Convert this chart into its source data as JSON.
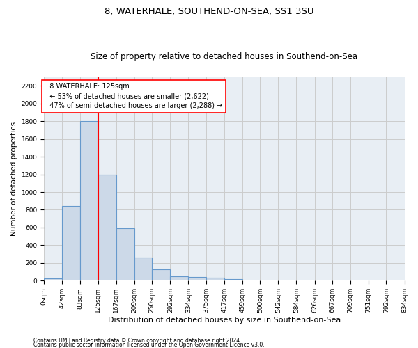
{
  "title1": "8, WATERHALE, SOUTHEND-ON-SEA, SS1 3SU",
  "title2": "Size of property relative to detached houses in Southend-on-Sea",
  "xlabel": "Distribution of detached houses by size in Southend-on-Sea",
  "ylabel": "Number of detached properties",
  "footer1": "Contains HM Land Registry data © Crown copyright and database right 2024.",
  "footer2": "Contains public sector information licensed under the Open Government Licence v3.0.",
  "annotation_line1": "  8 WATERHALE: 125sqm",
  "annotation_line2": "  ← 53% of detached houses are smaller (2,622)",
  "annotation_line3": "  47% of semi-detached houses are larger (2,288) →",
  "bar_color": "#ccd9e8",
  "bar_edge_color": "#6699cc",
  "vline_color": "red",
  "vline_x": 125,
  "bin_edges": [
    0,
    42,
    83,
    125,
    167,
    209,
    250,
    292,
    334,
    375,
    417,
    459,
    500,
    542,
    584,
    626,
    667,
    709,
    751,
    792,
    834
  ],
  "bin_labels": [
    "0sqm",
    "42sqm",
    "83sqm",
    "125sqm",
    "167sqm",
    "209sqm",
    "250sqm",
    "292sqm",
    "334sqm",
    "375sqm",
    "417sqm",
    "459sqm",
    "500sqm",
    "542sqm",
    "584sqm",
    "626sqm",
    "667sqm",
    "709sqm",
    "751sqm",
    "792sqm",
    "834sqm"
  ],
  "bar_heights": [
    25,
    845,
    1800,
    1200,
    590,
    260,
    130,
    50,
    45,
    32,
    22,
    0,
    0,
    0,
    0,
    0,
    0,
    0,
    0,
    0
  ],
  "ylim": [
    0,
    2300
  ],
  "yticks": [
    0,
    200,
    400,
    600,
    800,
    1000,
    1200,
    1400,
    1600,
    1800,
    2000,
    2200
  ],
  "grid_color": "#cccccc",
  "background_color": "#e8eef4",
  "title1_fontsize": 9.5,
  "title2_fontsize": 8.5,
  "annotation_fontsize": 7.0,
  "tick_fontsize": 6.5,
  "ylabel_fontsize": 7.5,
  "xlabel_fontsize": 8.0,
  "footer_fontsize": 5.5
}
